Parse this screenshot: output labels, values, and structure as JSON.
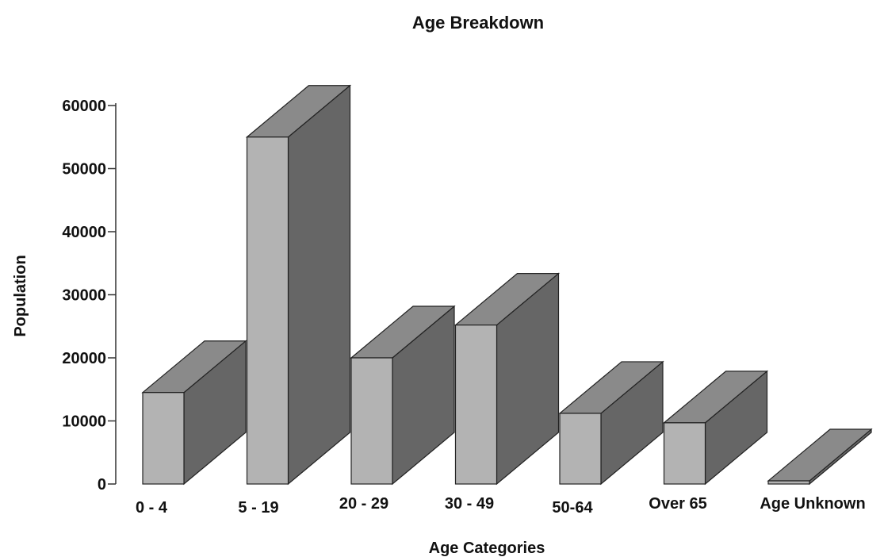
{
  "chart_data": {
    "type": "bar",
    "title": "Age Breakdown",
    "xlabel": "Age Categories",
    "ylabel": "Population",
    "categories": [
      "0 - 4",
      "5 - 19",
      "20 - 29",
      "30 - 49",
      "50-64",
      "Over 65",
      "Age Unknown"
    ],
    "values": [
      14500,
      55000,
      20000,
      25200,
      11200,
      9700,
      500
    ],
    "ylim": [
      0,
      60000
    ],
    "yticks": [
      "0",
      "10000",
      "20000",
      "30000",
      "40000",
      "50000",
      "60000"
    ],
    "grid": false,
    "legend": "none",
    "style": "3d",
    "colors": {
      "front": "#b3b3b3",
      "side": "#666666",
      "top": "#8a8a8a",
      "outline": "#222222"
    }
  }
}
